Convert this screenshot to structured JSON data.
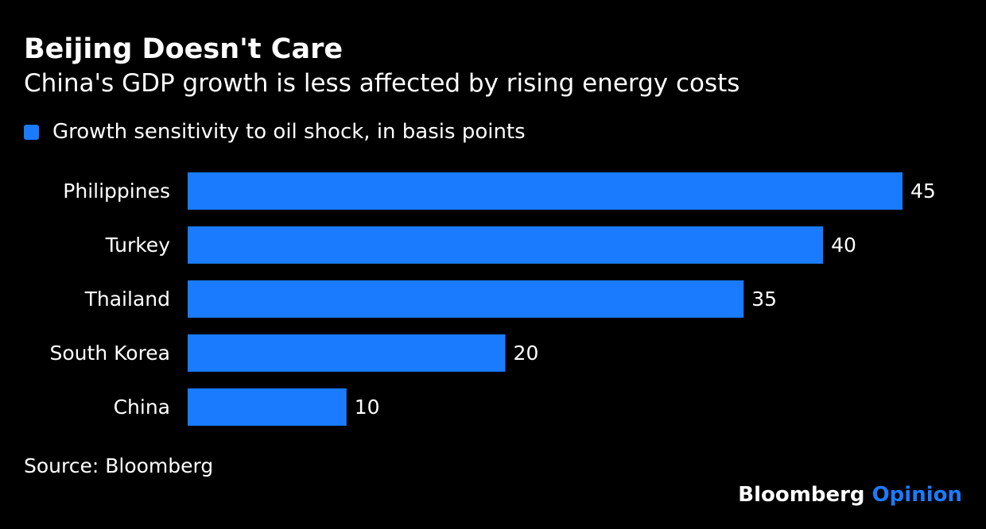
{
  "title": "Beijing Doesn't Care",
  "subtitle": "China's GDP growth is less affected by rising energy costs",
  "source": "Source: Bloomberg",
  "brand": {
    "name": "Bloomberg",
    "accent": "Opinion"
  },
  "colors": {
    "background": "#000000",
    "bar": "#1a7bff",
    "text": "#ffffff"
  },
  "chart_data": {
    "type": "bar",
    "orientation": "horizontal",
    "categories": [
      "Philippines",
      "Turkey",
      "Thailand",
      "South Korea",
      "China"
    ],
    "series": [
      {
        "name": "Growth sensitivity to oil shock, in basis points",
        "values": [
          45,
          40,
          35,
          20,
          10
        ]
      }
    ],
    "xlim": [
      0,
      45
    ],
    "grid": false,
    "legend": "top-left",
    "data_labels": true
  }
}
